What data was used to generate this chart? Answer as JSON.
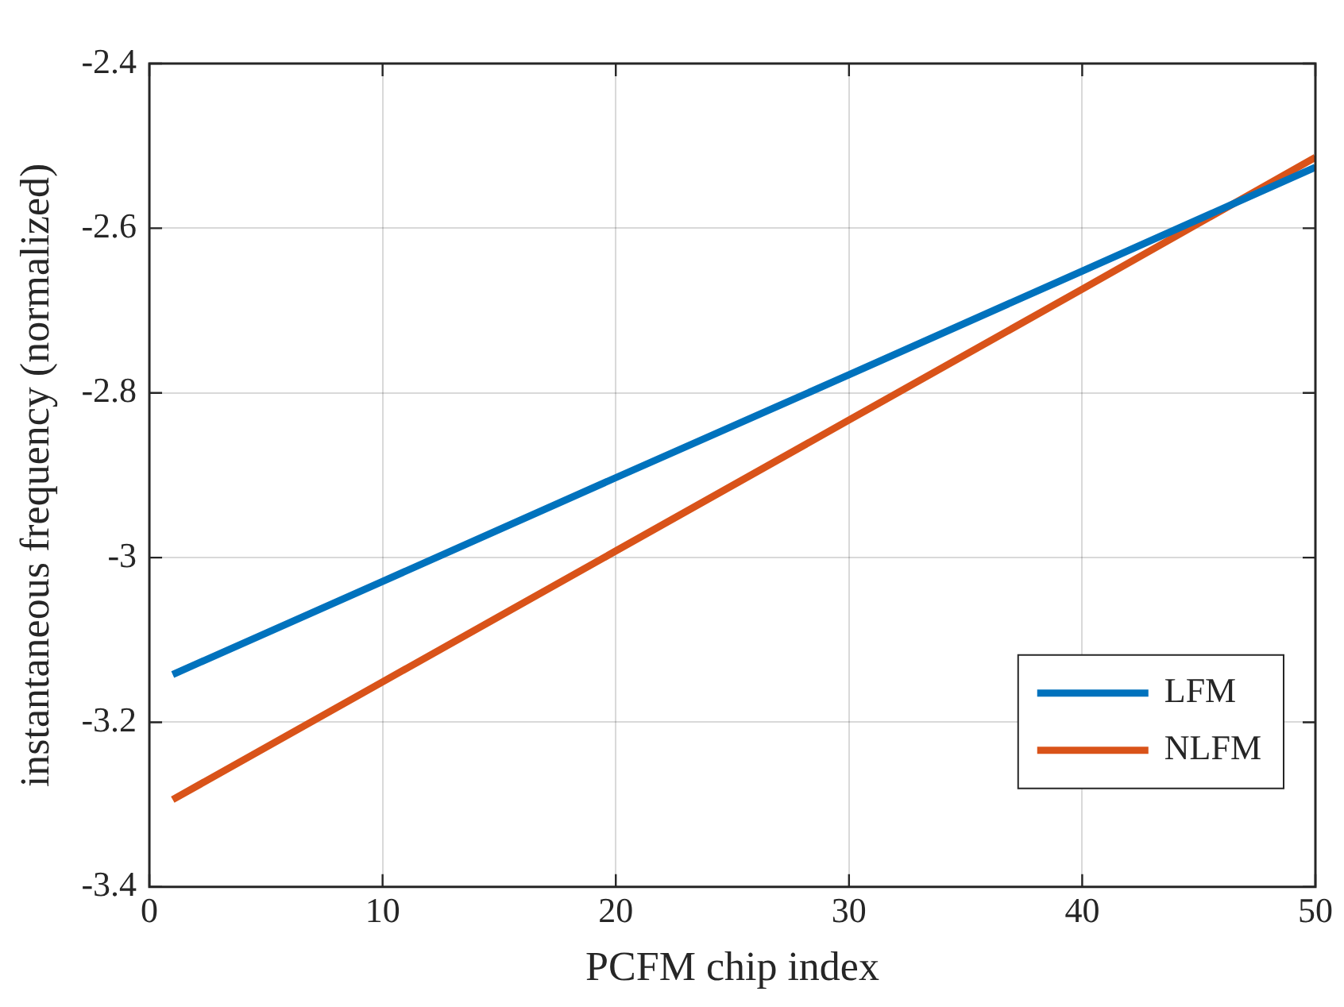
{
  "chart_data": {
    "type": "line",
    "xlabel": "PCFM chip index",
    "ylabel": "instantaneous frequency (normalized)",
    "xlim": [
      0,
      50
    ],
    "xticks": [
      0,
      10,
      20,
      30,
      40,
      50
    ],
    "ylim": [
      -3.4,
      -2.4
    ],
    "yticks": [
      -3.4,
      -3.2,
      -3,
      -2.8,
      -2.6,
      -2.4
    ],
    "grid": true,
    "legend": "bottom right",
    "marker": "none",
    "line_style": "solid",
    "series": [
      {
        "name": "LFM",
        "color": "#0072bd",
        "x": [
          1,
          10,
          20,
          30,
          40,
          50
        ],
        "values": [
          -3.142,
          -3.029,
          -2.903,
          -2.778,
          -2.652,
          -2.526
        ]
      },
      {
        "name": "NLFM",
        "color": "#d95319",
        "x": [
          1,
          10,
          20,
          30,
          40,
          50
        ],
        "values": [
          -3.294,
          -3.151,
          -2.992,
          -2.833,
          -2.674,
          -2.514
        ]
      }
    ]
  }
}
